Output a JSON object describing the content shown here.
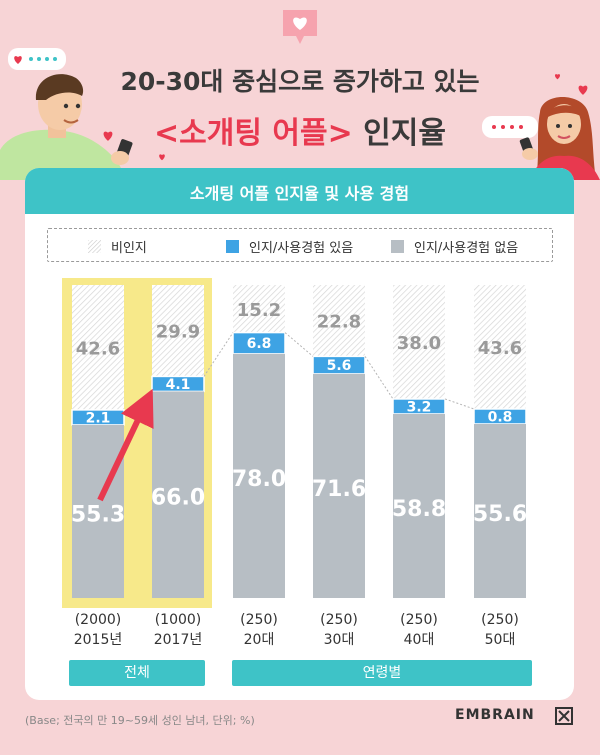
{
  "header": {
    "title_line1": "20-30대 중심으로 증가하고 있는",
    "title_line2_accent": "<소개팅 어플>",
    "title_line2_rest": " 인지율"
  },
  "card_title": "소개팅 어플 인지율 및 사용 경험",
  "footnote": "(Base; 전국의 만 19~59세 성인 남녀, 단위; %)",
  "brand": "EMBRAIN",
  "colors": {
    "teal": "#3ec3c7",
    "aware_used": "#3ea3e4",
    "aware_not_used": "#b7bec4",
    "highlight": "#f7e98a",
    "arrow": "#e8394f"
  },
  "chart_data": {
    "type": "bar",
    "stacked": true,
    "title": "소개팅 어플 인지율 및 사용 경험",
    "legend_position": "top",
    "categories": [
      {
        "base": "(2000)",
        "label": "2015년"
      },
      {
        "base": "(1000)",
        "label": "2017년"
      },
      {
        "base": "(250)",
        "label": "20대"
      },
      {
        "base": "(250)",
        "label": "30대"
      },
      {
        "base": "(250)",
        "label": "40대"
      },
      {
        "base": "(250)",
        "label": "50대"
      }
    ],
    "series": [
      {
        "name": "인지/사용경험 없음",
        "values": [
          55.3,
          66.0,
          78.0,
          71.6,
          58.8,
          55.6
        ]
      },
      {
        "name": "인지/사용경험 있음",
        "values": [
          2.1,
          4.1,
          6.8,
          5.6,
          3.2,
          0.8
        ]
      },
      {
        "name": "비인지",
        "values": [
          42.6,
          29.9,
          15.2,
          22.8,
          38.0,
          43.6
        ]
      }
    ],
    "legend": [
      "비인지",
      "인지/사용경험 있음",
      "인지/사용경험 없음"
    ],
    "groups": [
      {
        "label": "전체",
        "span": [
          0,
          1
        ]
      },
      {
        "label": "연령별",
        "span": [
          2,
          5
        ]
      }
    ],
    "ylim": [
      0,
      100
    ]
  }
}
